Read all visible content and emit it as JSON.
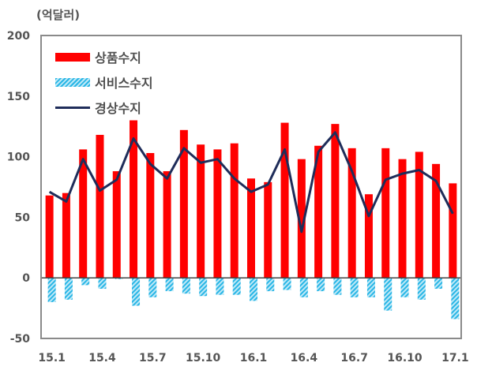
{
  "chart_data": {
    "type": "bar",
    "title": "",
    "unit_label": "(억달러)",
    "xlabel": "",
    "ylabel": "(억달러)",
    "ylim": [
      -50,
      200
    ],
    "yticks": [
      200,
      150,
      100,
      50,
      0,
      -50
    ],
    "xtick_labels": [
      "15.1",
      "15.4",
      "15.7",
      "15.10",
      "16.1",
      "16.4",
      "16.7",
      "16.10",
      "17.1"
    ],
    "categories": [
      "15.1",
      "15.2",
      "15.3",
      "15.4",
      "15.5",
      "15.6",
      "15.7",
      "15.8",
      "15.9",
      "15.10",
      "15.11",
      "15.12",
      "16.1",
      "16.2",
      "16.3",
      "16.4",
      "16.5",
      "16.6",
      "16.7",
      "16.8",
      "16.9",
      "16.10",
      "16.11",
      "16.12",
      "17.1"
    ],
    "series": [
      {
        "name": "상품수지",
        "type": "bar",
        "color": "#ff0000",
        "values": [
          68,
          70,
          106,
          118,
          88,
          130,
          103,
          88,
          122,
          110,
          106,
          111,
          82,
          79,
          128,
          98,
          109,
          127,
          107,
          69,
          107,
          98,
          104,
          94,
          78
        ]
      },
      {
        "name": "서비스수지",
        "type": "bar",
        "color": "#29b6e6",
        "pattern": "hatched",
        "values": [
          -20,
          -18,
          -6,
          -9,
          -1,
          -23,
          -16,
          -11,
          -13,
          -15,
          -14,
          -14,
          -19,
          -11,
          -10,
          -16,
          -11,
          -14,
          -16,
          -16,
          -27,
          -16,
          -18,
          -9,
          -34
        ]
      },
      {
        "name": "경상수지",
        "type": "line",
        "color": "#1f2d5a",
        "values": [
          71,
          63,
          98,
          72,
          81,
          115,
          94,
          82,
          107,
          95,
          98,
          82,
          71,
          77,
          106,
          38,
          104,
          120,
          88,
          51,
          81,
          86,
          89,
          80,
          53
        ]
      }
    ],
    "legend_position": "upper-left-inside",
    "grid": false
  },
  "legend": {
    "items": [
      {
        "label": "상품수지"
      },
      {
        "label": "서비스수지"
      },
      {
        "label": "경상수지"
      }
    ]
  }
}
